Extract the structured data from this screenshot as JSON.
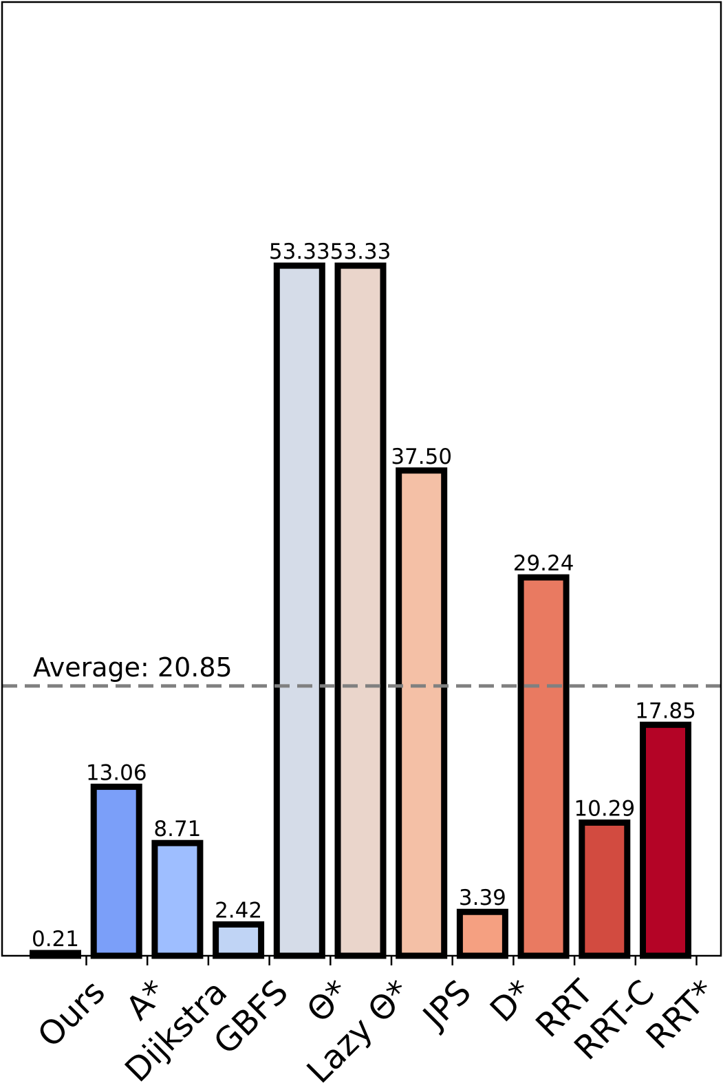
{
  "chart_data": {
    "type": "bar",
    "title": "",
    "xlabel": "",
    "ylabel": "",
    "ylim": [
      0,
      73.7
    ],
    "grid": false,
    "categories": [
      "Ours",
      "A*",
      "Dijkstra",
      "GBFS",
      "Θ*",
      "Lazy Θ*",
      "JPS",
      "D*",
      "RRT",
      "RRT-C",
      "RRT*"
    ],
    "values": [
      0.21,
      13.06,
      8.71,
      2.42,
      53.33,
      53.33,
      37.5,
      3.39,
      29.24,
      10.29,
      17.85
    ],
    "value_labels": [
      "0.21",
      "13.06",
      "8.71",
      "2.42",
      "53.33",
      "53.33",
      "37.50",
      "3.39",
      "29.24",
      "10.29",
      "17.85"
    ],
    "colors": [
      "#3b4cc0",
      "#7b9ff9",
      "#9ebeff",
      "#c0d4f5",
      "#d5dce8",
      "#ead5cb",
      "#f4c0a6",
      "#f5a081",
      "#e97a61",
      "#d24b40",
      "#b40426"
    ],
    "average": {
      "value": 20.85,
      "label": "Average: 20.85",
      "color": "#808080",
      "style": "dashed"
    }
  }
}
